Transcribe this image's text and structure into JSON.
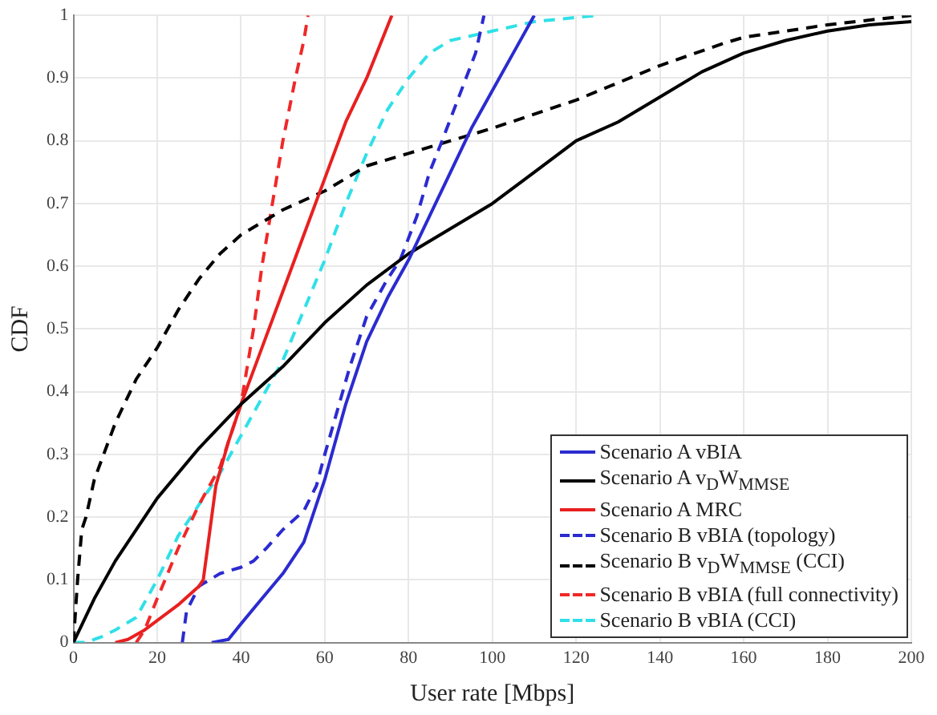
{
  "chart_data": {
    "type": "line",
    "xlabel": "User rate [Mbps]",
    "ylabel": "CDF",
    "xlim": [
      0,
      200
    ],
    "ylim": [
      0,
      1
    ],
    "xticks": [
      0,
      20,
      40,
      60,
      80,
      100,
      120,
      140,
      160,
      180,
      200
    ],
    "yticks": [
      0,
      0.1,
      0.2,
      0.3,
      0.4,
      0.5,
      0.6,
      0.7,
      0.8,
      0.9,
      1
    ],
    "grid": true,
    "legend": "bottom right",
    "marker": "none",
    "series": [
      {
        "name": "Scenario A vBIA",
        "color": "#2b2bd0",
        "line_style": "solid",
        "x": [
          33,
          37,
          40,
          45,
          50,
          55,
          60,
          65,
          70,
          75,
          80,
          85,
          90,
          95,
          100,
          105,
          110
        ],
        "values": [
          0,
          0.005,
          0.03,
          0.07,
          0.11,
          0.16,
          0.26,
          0.38,
          0.48,
          0.55,
          0.61,
          0.68,
          0.75,
          0.82,
          0.88,
          0.94,
          1
        ]
      },
      {
        "name": "Scenario A v$_{D}$W$_{MMSE}$",
        "color": "#000000",
        "line_style": "solid",
        "x": [
          0,
          5,
          10,
          20,
          30,
          40,
          50,
          60,
          70,
          80,
          90,
          100,
          110,
          120,
          130,
          140,
          150,
          160,
          170,
          180,
          190,
          200
        ],
        "values": [
          0,
          0.07,
          0.13,
          0.23,
          0.31,
          0.38,
          0.44,
          0.51,
          0.57,
          0.62,
          0.66,
          0.7,
          0.75,
          0.8,
          0.83,
          0.87,
          0.91,
          0.94,
          0.96,
          0.975,
          0.985,
          0.99
        ]
      },
      {
        "name": "Scenario A MRC",
        "color": "#e82020",
        "line_style": "solid",
        "x": [
          10,
          13,
          17,
          20,
          25,
          30,
          31,
          32,
          34,
          37,
          40,
          45,
          50,
          55,
          60,
          65,
          70,
          76
        ],
        "values": [
          0,
          0.005,
          0.02,
          0.035,
          0.06,
          0.09,
          0.1,
          0.15,
          0.25,
          0.32,
          0.38,
          0.47,
          0.56,
          0.65,
          0.74,
          0.83,
          0.9,
          1
        ]
      },
      {
        "name": "Scenario B vBIA (topology)",
        "color": "#2b2bd0",
        "line_style": "dashed",
        "x": [
          26,
          27,
          30,
          35,
          40,
          43,
          46,
          50,
          55,
          58,
          60,
          63,
          66,
          70,
          75,
          78,
          82,
          85,
          88,
          92,
          96,
          98
        ],
        "values": [
          0,
          0.05,
          0.09,
          0.11,
          0.12,
          0.13,
          0.15,
          0.18,
          0.21,
          0.25,
          0.3,
          0.37,
          0.44,
          0.52,
          0.58,
          0.61,
          0.68,
          0.75,
          0.8,
          0.87,
          0.94,
          1
        ]
      },
      {
        "name": "Scenario B v$_{D}$W$_{MMSE}$ (CCI)",
        "color": "#000000",
        "line_style": "dashed",
        "x": [
          0,
          1,
          2,
          3,
          5,
          10,
          15,
          20,
          25,
          30,
          35,
          40,
          50,
          60,
          70,
          80,
          90,
          100,
          120,
          140,
          155,
          160,
          180,
          200
        ],
        "values": [
          0,
          0.1,
          0.18,
          0.2,
          0.26,
          0.35,
          0.42,
          0.47,
          0.53,
          0.58,
          0.62,
          0.65,
          0.69,
          0.72,
          0.76,
          0.78,
          0.8,
          0.82,
          0.865,
          0.92,
          0.955,
          0.965,
          0.985,
          1
        ]
      },
      {
        "name": "Scenario B vBIA (full connectivity)",
        "color": "#f02828",
        "line_style": "dashed",
        "x": [
          15,
          17,
          20,
          25,
          30,
          35,
          40,
          43,
          45,
          47,
          50,
          53,
          55,
          56
        ],
        "values": [
          0,
          0.02,
          0.07,
          0.15,
          0.22,
          0.28,
          0.38,
          0.5,
          0.6,
          0.68,
          0.8,
          0.9,
          0.96,
          1
        ]
      },
      {
        "name": "Scenario B vBIA (CCI)",
        "color": "#30e0e8",
        "line_style": "dashed",
        "x": [
          0,
          3,
          7,
          10,
          15,
          20,
          25,
          30,
          35,
          40,
          45,
          50,
          55,
          60,
          65,
          70,
          75,
          80,
          85,
          90,
          100,
          110,
          125
        ],
        "values": [
          0,
          0,
          0.01,
          0.02,
          0.04,
          0.1,
          0.17,
          0.22,
          0.27,
          0.33,
          0.39,
          0.45,
          0.53,
          0.61,
          0.7,
          0.78,
          0.85,
          0.9,
          0.94,
          0.96,
          0.975,
          0.99,
          1
        ]
      }
    ]
  }
}
